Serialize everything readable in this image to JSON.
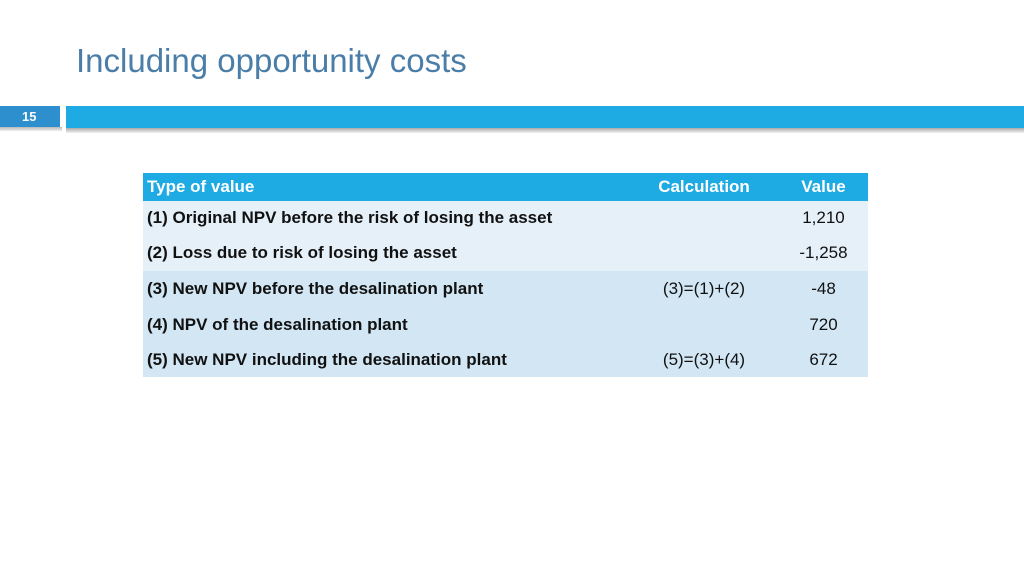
{
  "slide": {
    "title": "Including opportunity costs",
    "page_number": "15",
    "accent_color": "#1eaae3",
    "title_color": "#4a7ea8"
  },
  "table": {
    "headers": [
      "Type of value",
      "Calculation",
      "Value"
    ],
    "rows": [
      {
        "type": "(1) Original NPV before the risk of losing the asset",
        "calculation": "",
        "value": "1,210"
      },
      {
        "type": "(2) Loss due to risk of losing the asset",
        "calculation": "",
        "value": "-1,258"
      },
      {
        "type": "(3) New NPV before the desalination plant",
        "calculation": "(3)=(1)+(2)",
        "value": "-48"
      },
      {
        "type": "(4) NPV of the desalination plant",
        "calculation": "",
        "value": "720"
      },
      {
        "type": "(5) New NPV including the desalination plant",
        "calculation": "(5)=(3)+(4)",
        "value": "672"
      }
    ]
  }
}
